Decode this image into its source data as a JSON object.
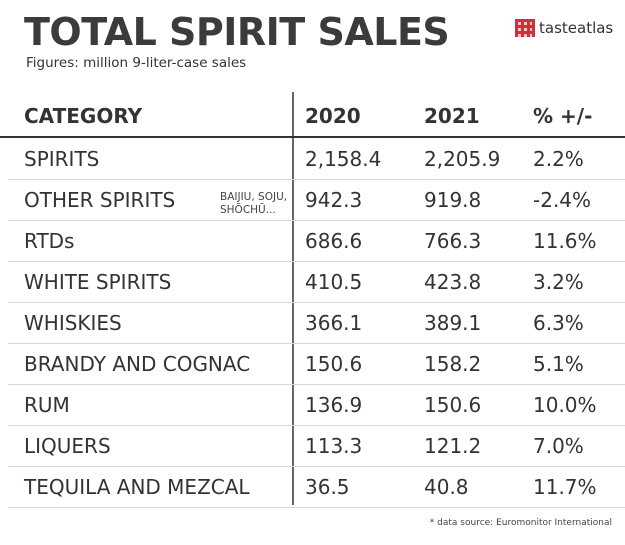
{
  "header": {
    "title": "TOTAL SPIRIT SALES",
    "subtitle": "Figures: million 9-liter-case sales",
    "logo_text": "tasteatlas",
    "logo_icon": "checkered-tablecloth-icon"
  },
  "colors": {
    "text": "#333333",
    "logo_red": "#d0303a"
  },
  "chart_data": {
    "type": "table",
    "title": "TOTAL SPIRIT SALES",
    "subtitle": "Figures: million 9-liter-case sales",
    "columns": [
      "CATEGORY",
      "2020",
      "2021",
      "% +/-"
    ],
    "rows": [
      {
        "category": "SPIRITS",
        "note": "",
        "y2020": "2,158.4",
        "y2021": "2,205.9",
        "change": "2.2%"
      },
      {
        "category": "OTHER SPIRITS",
        "note": "BAIJIU, SOJU, SHŌCHŪ...",
        "y2020": "942.3",
        "y2021": "919.8",
        "change": "-2.4%"
      },
      {
        "category": "RTDs",
        "note": "",
        "y2020": "686.6",
        "y2021": "766.3",
        "change": "11.6%"
      },
      {
        "category": "WHITE SPIRITS",
        "note": "",
        "y2020": "410.5",
        "y2021": "423.8",
        "change": "3.2%"
      },
      {
        "category": "WHISKIES",
        "note": "",
        "y2020": "366.1",
        "y2021": "389.1",
        "change": "6.3%"
      },
      {
        "category": "BRANDY AND COGNAC",
        "note": "",
        "y2020": "150.6",
        "y2021": "158.2",
        "change": "5.1%"
      },
      {
        "category": "RUM",
        "note": "",
        "y2020": "136.9",
        "y2021": "150.6",
        "change": "10.0%"
      },
      {
        "category": "LIQUERS",
        "note": "",
        "y2020": "113.3",
        "y2021": "121.2",
        "change": "7.0%"
      },
      {
        "category": "TEQUILA AND MEZCAL",
        "note": "",
        "y2020": "36.5",
        "y2021": "40.8",
        "change": "11.7%"
      }
    ]
  },
  "footer": "* data source: Euromonitor International"
}
